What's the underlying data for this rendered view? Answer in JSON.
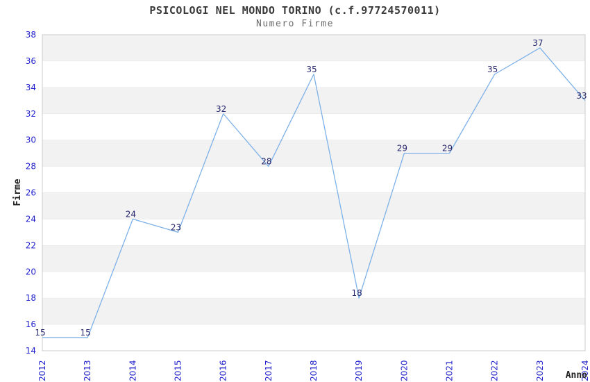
{
  "chart_data": {
    "type": "line",
    "title": "PSICOLOGI NEL MONDO TORINO (c.f.97724570011)",
    "subtitle": "Numero Firme",
    "xlabel": "Anno",
    "ylabel": "Firme",
    "categories": [
      "2012",
      "2013",
      "2014",
      "2015",
      "2016",
      "2017",
      "2018",
      "2019",
      "2020",
      "2021",
      "2022",
      "2023",
      "2024"
    ],
    "series": [
      {
        "name": "Numero Firme",
        "values": [
          15,
          15,
          24,
          23,
          32,
          28,
          35,
          18,
          29,
          29,
          35,
          37,
          33
        ]
      }
    ],
    "ylim": [
      14,
      38
    ],
    "ytick_step": 2,
    "yticks": [
      14,
      16,
      18,
      20,
      22,
      24,
      26,
      28,
      30,
      32,
      34,
      36,
      38
    ],
    "grid": "alternating-horizontal-bands",
    "legend_position": "none",
    "data_labels": true
  },
  "colors": {
    "line": "#7db1e8",
    "tick_label": "#2222cc",
    "data_label": "#28286e",
    "band_gray": "#f2f2f2",
    "band_white": "#ffffff",
    "plot_border": "#cccccc",
    "title": "#3a3a3a",
    "subtitle": "#6b6b6b",
    "axis_title": "#222222",
    "background": "#ffffff"
  }
}
